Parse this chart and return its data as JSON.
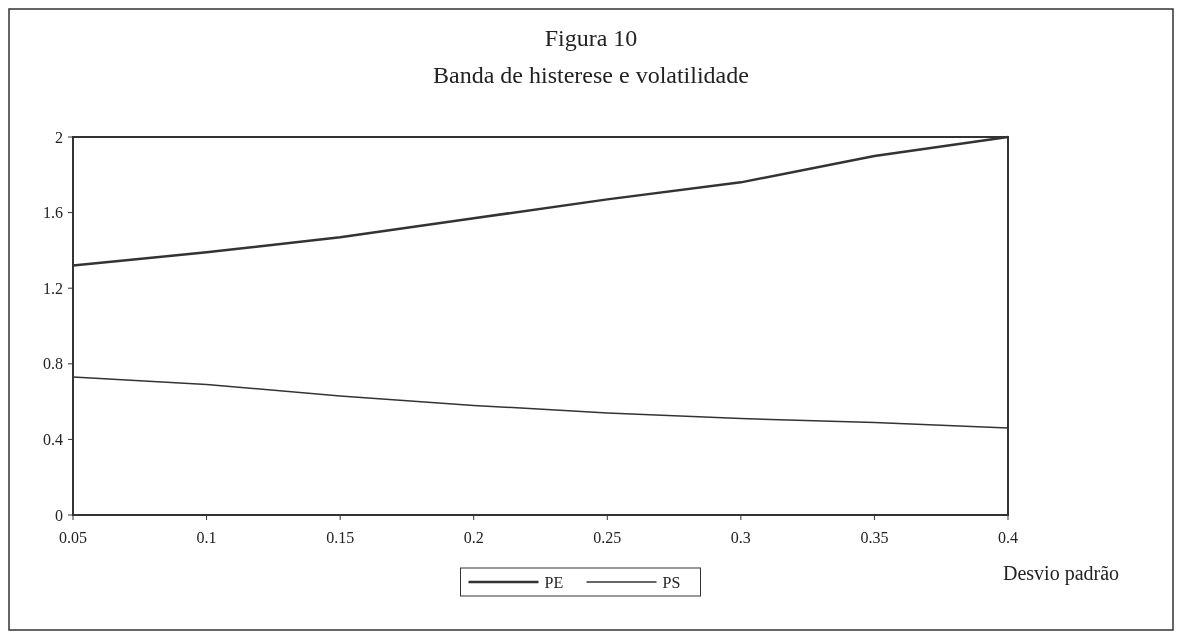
{
  "chart_data": {
    "type": "line",
    "title": "Figura 10",
    "subtitle": "Banda de histerese e volatilidade",
    "xlabel": "Desvio padrão",
    "x": [
      0.05,
      0.1,
      0.15,
      0.2,
      0.25,
      0.3,
      0.35,
      0.4
    ],
    "series": [
      {
        "name": "PE",
        "color": "#333333",
        "values": [
          1.32,
          1.39,
          1.47,
          1.57,
          1.67,
          1.76,
          1.9,
          2.0
        ]
      },
      {
        "name": "PS",
        "color": "#333333",
        "values": [
          0.73,
          0.69,
          0.63,
          0.58,
          0.54,
          0.51,
          0.49,
          0.46
        ]
      }
    ],
    "xlim": [
      0.05,
      0.4
    ],
    "xticks": [
      0.05,
      0.1,
      0.15,
      0.2,
      0.25,
      0.3,
      0.35,
      0.4
    ],
    "ylim": [
      0,
      2
    ],
    "yticks": [
      0,
      0.4,
      0.8,
      1.2,
      1.6,
      2
    ],
    "grid": false,
    "legend": "bottom",
    "marker": "none",
    "line_style": "solid"
  }
}
